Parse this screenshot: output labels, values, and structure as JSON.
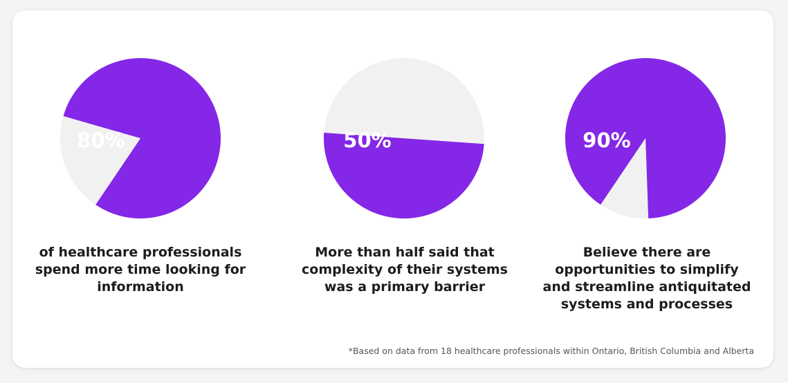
{
  "colors": {
    "primary": "#8427e7",
    "secondary": "#f1f1f2",
    "text": "#1c1c1c",
    "footnote": "#555555"
  },
  "chart_data": [
    {
      "type": "pie",
      "title": "",
      "label": "80%",
      "caption": "of healthcare professionals spend more time looking for information",
      "slices": [
        {
          "value": 80,
          "color": "#8427e7"
        },
        {
          "value": 20,
          "color": "#f1f1f2"
        }
      ]
    },
    {
      "type": "pie",
      "title": "",
      "label": "50%",
      "caption": "More than half said that complexity of their systems was a primary barrier",
      "slices": [
        {
          "value": 50,
          "color": "#8427e7"
        },
        {
          "value": 50,
          "color": "#f1f1f2"
        }
      ]
    },
    {
      "type": "pie",
      "title": "",
      "label": "90%",
      "caption": "Believe there are opportunities to simplify and streamline antiquitated systems and processes",
      "slices": [
        {
          "value": 90,
          "color": "#8427e7"
        },
        {
          "value": 10,
          "color": "#f1f1f2"
        }
      ]
    }
  ],
  "footnote": "*Based on data from 18 healthcare professionals within Ontario, British Columbia and Alberta"
}
